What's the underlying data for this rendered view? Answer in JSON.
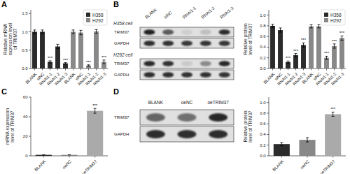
{
  "chart_data": [
    {
      "type": "bar",
      "panel": "A",
      "ylabel": "Relative mRNA\nexpression level\nof TRIM37",
      "ylim": [
        0,
        1.6
      ],
      "yticks": [
        {
          "value": 0,
          "label": "0.0"
        },
        0.5,
        {
          "value": 1,
          "label": "1.0"
        },
        1.5
      ],
      "categories": [
        "BLANK",
        "siNC",
        "RNAi1-1",
        "RNAi1-2",
        "RNAi1-3",
        "BLANK",
        "siNC",
        "RNAi1-1",
        "RNAi1-2",
        "RNAi1-3"
      ],
      "series": [
        {
          "name": "H358",
          "color": "#2b2b2b",
          "values": [
            1.0,
            1.0,
            0.18,
            0.6,
            0.14,
            null,
            null,
            null,
            null,
            null
          ],
          "errors": [
            0.05,
            0.05,
            0.03,
            0.06,
            0.02,
            null,
            null,
            null,
            null,
            null
          ],
          "annotations": [
            null,
            null,
            "***",
            null,
            "***",
            null,
            null,
            null,
            null,
            null
          ]
        },
        {
          "name": "H292",
          "color": "#888888",
          "values": [
            null,
            null,
            null,
            null,
            null,
            1.0,
            0.98,
            0.08,
            1.01,
            0.18
          ],
          "errors": [
            null,
            null,
            null,
            null,
            null,
            0.05,
            0.06,
            0.02,
            0.05,
            0.05
          ],
          "annotations": [
            null,
            null,
            null,
            null,
            null,
            null,
            null,
            "***",
            null,
            "***"
          ]
        }
      ],
      "legend": "upper right"
    },
    {
      "type": "blot",
      "panel": "B",
      "categories": [
        "BLANK",
        "siNC",
        "RNAi1-1",
        "RNAi1-2",
        "RNAi1-3"
      ],
      "sections": [
        {
          "title": "H358 cell",
          "series": [
            {
              "name": "TRIM37",
              "values": [
                0.85,
                0.6,
                0.08,
                0.15,
                0.8
              ]
            },
            {
              "name": "GAPDH",
              "values": [
                0.8,
                0.78,
                0.75,
                0.77,
                0.76
              ]
            }
          ]
        },
        {
          "title": "H292 cell",
          "series": [
            {
              "name": "TRIM37",
              "values": [
                0.82,
                0.78,
                0.1,
                0.38,
                0.82
              ]
            },
            {
              "name": "GAPDH",
              "values": [
                0.8,
                0.79,
                0.78,
                0.78,
                0.77
              ]
            }
          ]
        }
      ]
    },
    {
      "type": "bar",
      "ylabel": "Relative protein\nlevel of TRIM37",
      "ylim": [
        0,
        1.1
      ],
      "yticks": [
        {
          "value": 0,
          "label": "0.0"
        },
        0.2,
        0.4,
        0.6,
        0.8,
        {
          "value": 1,
          "label": "1.0"
        }
      ],
      "categories": [
        "BLANK",
        "siNC",
        "RNAi1-1",
        "RNAi1-2",
        "RNAi1-3",
        "BLANK",
        "siNC",
        "RNAi1-1",
        "RNAi1-2",
        "RNAi1-3"
      ],
      "series": [
        {
          "name": "H358",
          "color": "#2b2b2b",
          "values": [
            0.8,
            0.72,
            0.12,
            0.25,
            0.44,
            null,
            null,
            null,
            null,
            null
          ],
          "errors": [
            0.03,
            0.04,
            0.02,
            0.03,
            0.04,
            null,
            null,
            null,
            null,
            null
          ],
          "annotations": [
            null,
            null,
            "***",
            "***",
            "***",
            null,
            null,
            null,
            null,
            null
          ]
        },
        {
          "name": "H292",
          "color": "#888888",
          "values": [
            null,
            null,
            null,
            null,
            null,
            0.79,
            0.79,
            0.2,
            0.42,
            0.57
          ],
          "errors": [
            null,
            null,
            null,
            null,
            null,
            0.03,
            0.03,
            0.03,
            0.04,
            0.04
          ],
          "annotations": [
            null,
            null,
            null,
            null,
            null,
            null,
            null,
            "***",
            "***",
            "***"
          ]
        }
      ],
      "legend": "upper right"
    },
    {
      "type": "bar",
      "panel": "C",
      "ylabel": "mRNA expression\nlevel of TRIM37",
      "ylim": [
        0,
        60
      ],
      "yticks": [
        0,
        20,
        40,
        60
      ],
      "categories": [
        "BLANK",
        "oeNC",
        "oeTRIM37"
      ],
      "values": [
        1.0,
        1.0,
        46.0
      ],
      "errors": [
        0.08,
        0.08,
        2.5
      ],
      "annotations": [
        null,
        null,
        "***"
      ],
      "colors": [
        "#2b2b2b",
        "#888888",
        "#aaaaaa"
      ]
    },
    {
      "type": "blot",
      "panel": "D",
      "categories": [
        "BLANK",
        "oeNC",
        "oeTRIM37"
      ],
      "series": [
        {
          "name": "TRIM37",
          "values": [
            0.55,
            0.5,
            0.82
          ]
        },
        {
          "name": "GAPDH",
          "values": [
            0.8,
            0.79,
            0.8
          ]
        }
      ]
    },
    {
      "type": "bar",
      "ylabel": "Relative protein\nlevel of TRIM37",
      "ylim": [
        0,
        1.1
      ],
      "yticks": [
        {
          "value": 0,
          "label": "0.0"
        },
        0.2,
        0.4,
        0.6,
        0.8,
        {
          "value": 1,
          "label": "1.0"
        }
      ],
      "categories": [
        "BLANK",
        "oeNC",
        "oeTRIM37"
      ],
      "values": [
        0.22,
        0.3,
        0.78
      ],
      "errors": [
        0.03,
        0.04,
        0.04
      ],
      "annotations": [
        null,
        null,
        "***"
      ],
      "colors": [
        "#2b2b2b",
        "#888888",
        "#aaaaaa"
      ]
    }
  ]
}
